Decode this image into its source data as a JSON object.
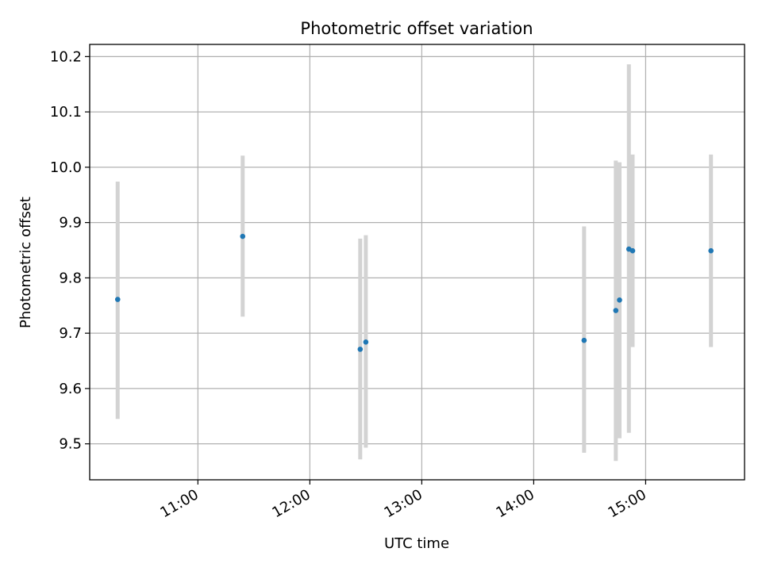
{
  "chart_data": {
    "type": "scatter",
    "title": "Photometric offset variation",
    "xlabel": "UTC time",
    "ylabel": "Photometric offset",
    "x_tick_labels": [
      "11:00",
      "12:00",
      "13:00",
      "14:00",
      "15:00"
    ],
    "x_ticks": [
      "11:00",
      "12:00",
      "13:00",
      "14:00",
      "15:00"
    ],
    "xlim": [
      "10:02",
      "15:53"
    ],
    "y_tick_labels": [
      "9.5",
      "9.6",
      "9.7",
      "9.8",
      "9.9",
      "10.0",
      "10.1",
      "10.2"
    ],
    "y_ticks": [
      9.5,
      9.6,
      9.7,
      9.8,
      9.9,
      10.0,
      10.1,
      10.2
    ],
    "ylim": [
      9.435,
      10.222
    ],
    "grid": true,
    "point_color": "#1f77b4",
    "errorbar_color": "#d3d3d3",
    "points": [
      {
        "x": "10:17",
        "y": 9.761,
        "ylow": 9.545,
        "yhigh": 9.974
      },
      {
        "x": "11:24",
        "y": 9.875,
        "ylow": 9.73,
        "yhigh": 10.021
      },
      {
        "x": "12:27",
        "y": 9.671,
        "ylow": 9.472,
        "yhigh": 9.871
      },
      {
        "x": "12:30",
        "y": 9.684,
        "ylow": 9.493,
        "yhigh": 9.877
      },
      {
        "x": "14:27",
        "y": 9.687,
        "ylow": 9.484,
        "yhigh": 9.893
      },
      {
        "x": "14:44",
        "y": 9.741,
        "ylow": 9.469,
        "yhigh": 10.012
      },
      {
        "x": "14:46",
        "y": 9.76,
        "ylow": 9.51,
        "yhigh": 10.009
      },
      {
        "x": "14:51",
        "y": 9.852,
        "ylow": 9.52,
        "yhigh": 10.186
      },
      {
        "x": "14:53",
        "y": 9.849,
        "ylow": 9.675,
        "yhigh": 10.023
      },
      {
        "x": "15:35",
        "y": 9.849,
        "ylow": 9.675,
        "yhigh": 10.023
      }
    ]
  }
}
